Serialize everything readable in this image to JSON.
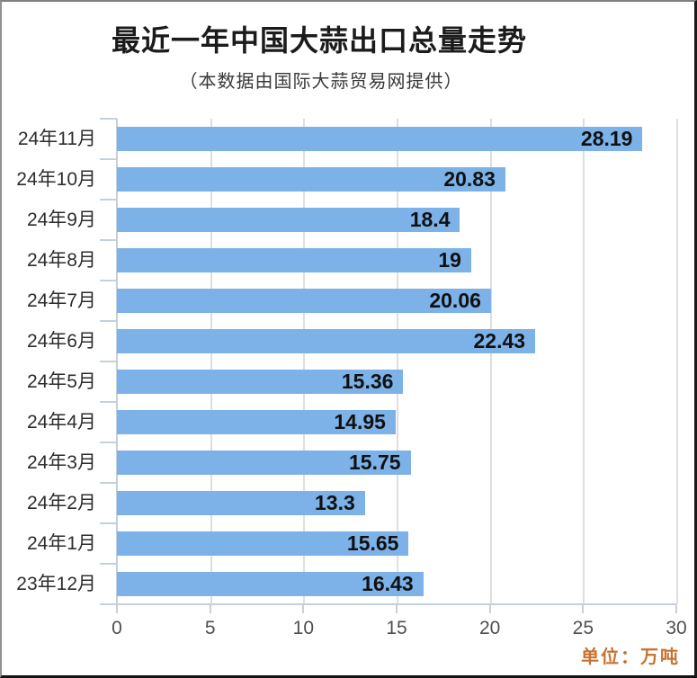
{
  "header": {
    "title": "最近一年中国大蒜出口总量走势",
    "subtitle": "（本数据由国际大蒜贸易网提供）"
  },
  "unit_label": "单位：万吨",
  "colors": {
    "bar": "#7cb2e7",
    "axis": "#c4d1dc",
    "grid": "#dedede",
    "title": "#1b1b1b",
    "subtitle": "#383838",
    "category_label": "#2d2d2d",
    "value_label": "#101010",
    "tick_label": "#4f4f4f",
    "unit_label": "#c7722f",
    "background": "#ffffff"
  },
  "chart_data": {
    "type": "bar",
    "orientation": "horizontal",
    "title": "最近一年中国大蒜出口总量走势",
    "subtitle": "（本数据由国际大蒜贸易网提供）",
    "unit": "万吨",
    "categories": [
      "24年11月",
      "24年10月",
      "24年9月",
      "24年8月",
      "24年7月",
      "24年6月",
      "24年5月",
      "24年4月",
      "24年3月",
      "24年2月",
      "24年1月",
      "23年12月"
    ],
    "values": [
      28.19,
      20.83,
      18.4,
      19,
      20.06,
      22.43,
      15.36,
      14.95,
      15.75,
      13.3,
      15.65,
      16.43
    ],
    "value_labels_inside_bar": true,
    "xlim": [
      0,
      30
    ],
    "xticks": [
      0,
      5,
      10,
      15,
      20,
      25,
      30
    ],
    "grid": true,
    "legend": false
  }
}
